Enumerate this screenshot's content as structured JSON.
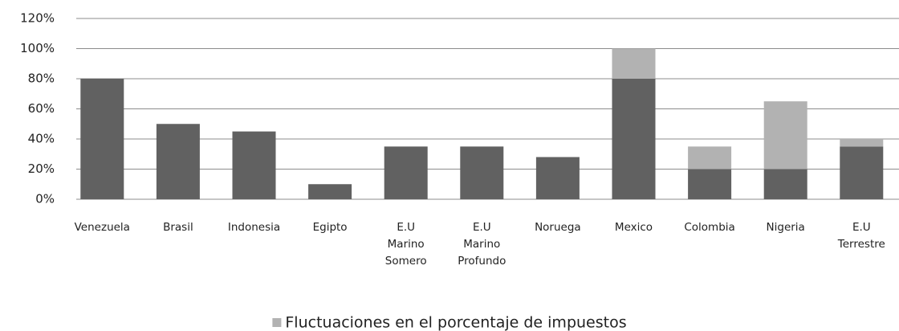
{
  "chart_data": {
    "type": "stacked_bar",
    "categories": [
      "Venezuela",
      "Brasil",
      "Indonesia",
      "Egipto",
      "E.U Marino Somero",
      "E.U Marino Profundo",
      "Noruega",
      "Mexico",
      "Colombia",
      "Nigeria",
      "E.U Terrestre"
    ],
    "series": [
      {
        "color": "#616161",
        "values": [
          80,
          50,
          45,
          10,
          35,
          35,
          28,
          80,
          20,
          20,
          35
        ]
      },
      {
        "name": "Fluctuaciones en el porcentaje de impuestos",
        "color": "#b2b2b2",
        "values": [
          0,
          0,
          0,
          0,
          0,
          0,
          0,
          20,
          15,
          45,
          5
        ]
      }
    ],
    "ylim": [
      0,
      120
    ],
    "yticks": [
      {
        "value": 0,
        "label": "0%"
      },
      {
        "value": 20,
        "label": "20%"
      },
      {
        "value": 40,
        "label": "40%"
      },
      {
        "value": 60,
        "label": "60%"
      },
      {
        "value": 80,
        "label": "80%"
      },
      {
        "value": 100,
        "label": "100%"
      },
      {
        "value": 120,
        "label": "120%"
      }
    ],
    "grid": true
  }
}
